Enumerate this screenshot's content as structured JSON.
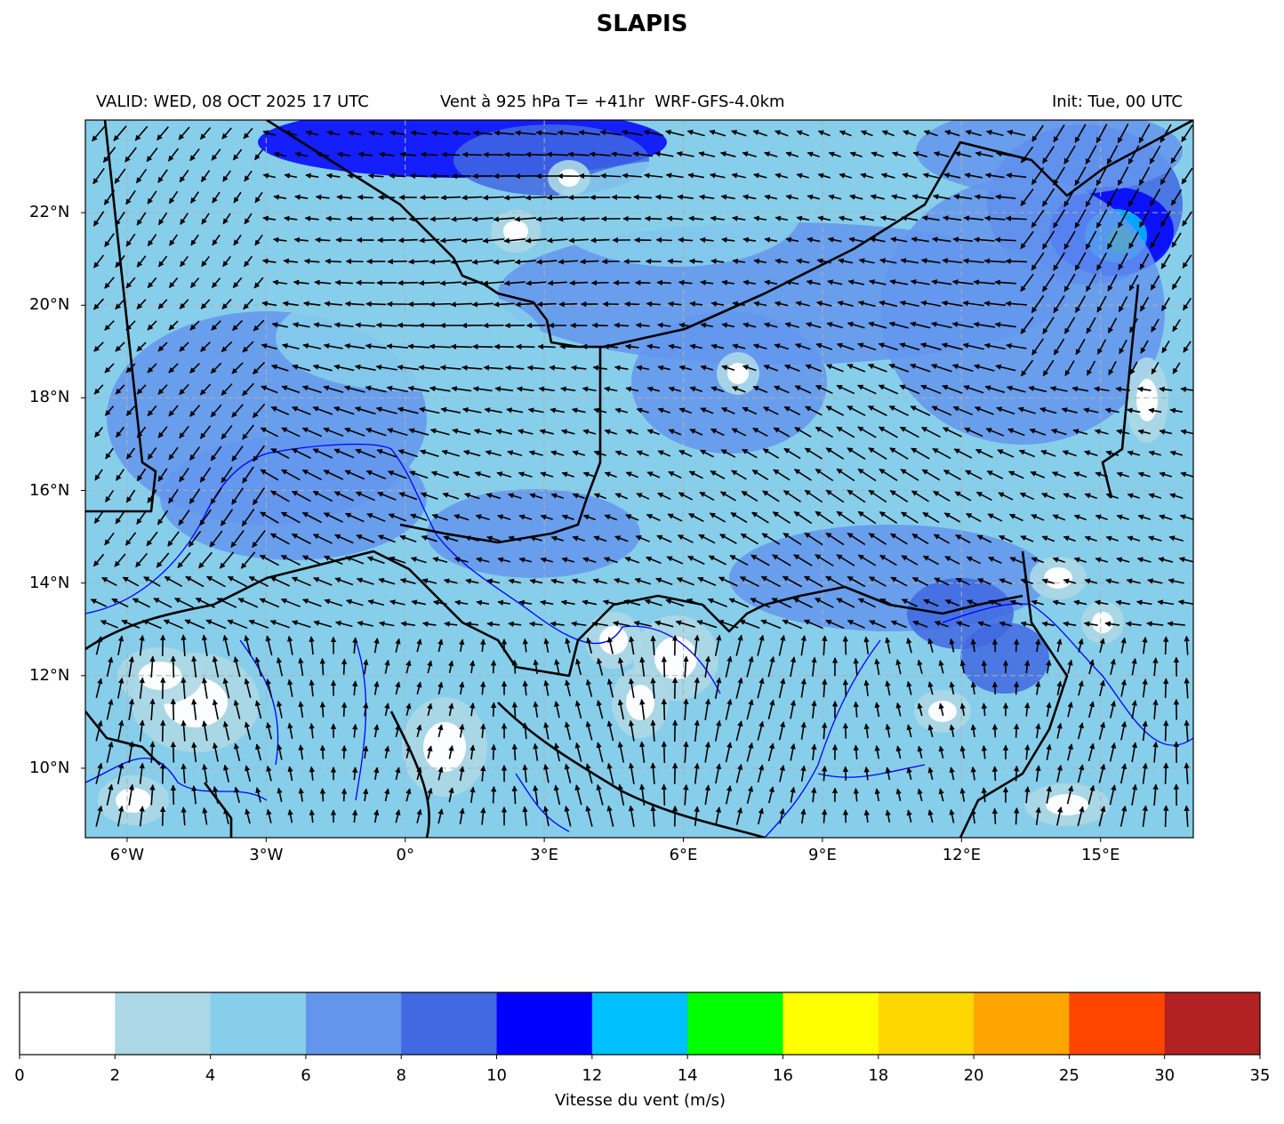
{
  "title": "SLAPIS",
  "header": {
    "valid": "VALID: WED, 08 OCT 2025 17 UTC",
    "product": "Vent à 925 hPa T= +41hr  WRF-GFS-4.0km",
    "init": "Init: Tue, 00 UTC"
  },
  "map": {
    "lat_ticks": [
      {
        "value": 22,
        "label": "22°N"
      },
      {
        "value": 20,
        "label": "20°N"
      },
      {
        "value": 18,
        "label": "18°N"
      },
      {
        "value": 16,
        "label": "16°N"
      },
      {
        "value": 14,
        "label": "14°N"
      },
      {
        "value": 12,
        "label": "12°N"
      },
      {
        "value": 10,
        "label": "10°N"
      }
    ],
    "lon_ticks": [
      {
        "value": -6,
        "label": "6°W"
      },
      {
        "value": -3,
        "label": "3°W"
      },
      {
        "value": 0,
        "label": "0°"
      },
      {
        "value": 3,
        "label": "3°E"
      },
      {
        "value": 6,
        "label": "6°E"
      },
      {
        "value": 9,
        "label": "9°E"
      },
      {
        "value": 12,
        "label": "12°E"
      },
      {
        "value": 15,
        "label": "15°E"
      }
    ],
    "extent": {
      "lon_min": -6.9,
      "lon_max": 17.0,
      "lat_min": 8.5,
      "lat_max": 24.0
    },
    "gridlines": true,
    "colors": {
      "country_border": "#000000",
      "river": "#0000ff",
      "arrow": "#000000",
      "grid": "#b0b0b0"
    }
  },
  "colorbar": {
    "title": "Vitesse du vent (m/s)",
    "bounds": [
      "0",
      "2",
      "4",
      "6",
      "8",
      "10",
      "12",
      "14",
      "16",
      "18",
      "20",
      "25",
      "30",
      "35"
    ],
    "colors": [
      "#ffffff",
      "#add8e6",
      "#87ceeb",
      "#6495ed",
      "#4169e1",
      "#0000ff",
      "#00bfff",
      "#00ff00",
      "#ffff00",
      "#ffd700",
      "#ffa500",
      "#ff4500",
      "#b22222"
    ]
  }
}
